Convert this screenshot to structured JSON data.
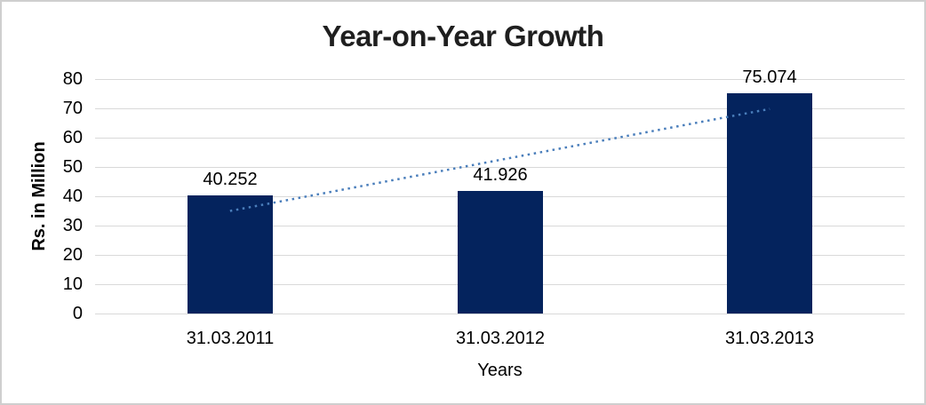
{
  "chart_data": {
    "type": "bar",
    "title": "Year-on-Year Growth",
    "categories": [
      "31.03.2011",
      "31.03.2012",
      "31.03.2013"
    ],
    "values": [
      40.252,
      41.926,
      75.074
    ],
    "bar_value_labels": [
      "40.252",
      "41.926",
      "75.074"
    ],
    "xlabel": "Years",
    "ylabel": "Rs. in Million",
    "ylim": [
      0,
      80
    ],
    "yticks": [
      0,
      10,
      20,
      30,
      40,
      50,
      60,
      70,
      80
    ],
    "grid": "horizontal",
    "legend_position": "none",
    "trendline": {
      "type": "linear",
      "style": "dotted",
      "start_value": 35.0,
      "end_value": 69.8,
      "color": "#4a7ebb"
    },
    "colors": {
      "bar": "#04235d",
      "gridline": "#d9d9d9",
      "title_text": "#1f1f1f",
      "text": "#000000",
      "frame_border": "#cfcfcf",
      "background": "#ffffff"
    }
  }
}
